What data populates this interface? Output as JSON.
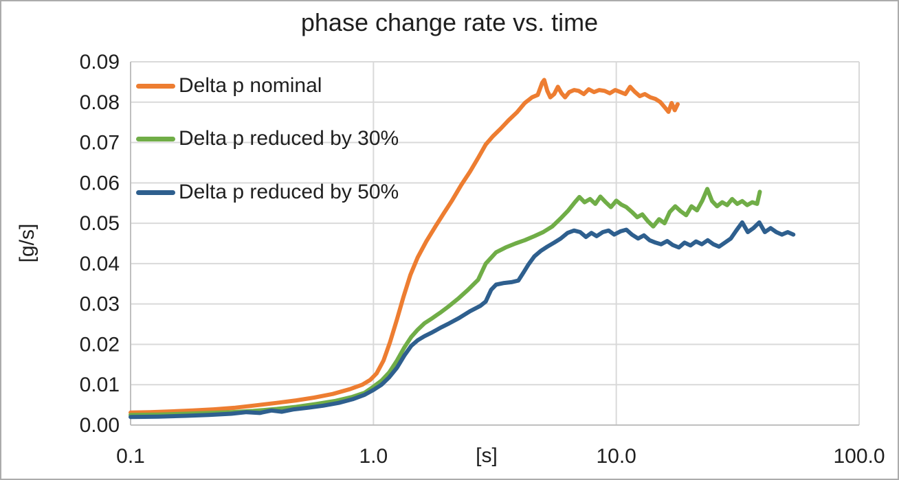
{
  "chart_data": {
    "type": "line",
    "title": "phase change rate vs. time",
    "xlabel": "[s]",
    "ylabel": "[g/s]",
    "x_scale": "log",
    "xlim": [
      0.1,
      100
    ],
    "ylim": [
      0,
      0.09
    ],
    "x_ticks": [
      0.1,
      1,
      10,
      100
    ],
    "x_tick_labels": [
      "0.1",
      "1.0",
      "10.0",
      "100.0"
    ],
    "y_tick_step": 0.01,
    "y_tick_labels": [
      "0.00",
      "0.01",
      "0.02",
      "0.03",
      "0.04",
      "0.05",
      "0.06",
      "0.07",
      "0.08",
      "0.09"
    ],
    "grid": true,
    "legend_position": "inside-top-left",
    "series": [
      {
        "name": "Delta p nominal",
        "color": "#ED7D31",
        "points": [
          [
            0.1,
            0.0031
          ],
          [
            0.12,
            0.0032
          ],
          [
            0.15,
            0.0034
          ],
          [
            0.18,
            0.0036
          ],
          [
            0.22,
            0.0039
          ],
          [
            0.27,
            0.0043
          ],
          [
            0.33,
            0.0049
          ],
          [
            0.4,
            0.0055
          ],
          [
            0.48,
            0.0061
          ],
          [
            0.57,
            0.0068
          ],
          [
            0.68,
            0.0077
          ],
          [
            0.8,
            0.0089
          ],
          [
            0.9,
            0.01
          ],
          [
            0.97,
            0.0112
          ],
          [
            1.03,
            0.0128
          ],
          [
            1.1,
            0.016
          ],
          [
            1.17,
            0.0205
          ],
          [
            1.25,
            0.0262
          ],
          [
            1.33,
            0.0318
          ],
          [
            1.42,
            0.0372
          ],
          [
            1.52,
            0.0415
          ],
          [
            1.65,
            0.0455
          ],
          [
            1.8,
            0.0492
          ],
          [
            1.95,
            0.0525
          ],
          [
            2.1,
            0.0555
          ],
          [
            2.3,
            0.0595
          ],
          [
            2.5,
            0.0628
          ],
          [
            2.7,
            0.0662
          ],
          [
            2.9,
            0.0695
          ],
          [
            3.1,
            0.0715
          ],
          [
            3.35,
            0.0735
          ],
          [
            3.6,
            0.0755
          ],
          [
            3.9,
            0.0775
          ],
          [
            4.2,
            0.0798
          ],
          [
            4.5,
            0.0812
          ],
          [
            4.75,
            0.0818
          ],
          [
            4.95,
            0.0848
          ],
          [
            5.05,
            0.0855
          ],
          [
            5.2,
            0.0828
          ],
          [
            5.35,
            0.0812
          ],
          [
            5.55,
            0.082
          ],
          [
            5.75,
            0.0838
          ],
          [
            5.95,
            0.0822
          ],
          [
            6.15,
            0.0812
          ],
          [
            6.4,
            0.0825
          ],
          [
            6.7,
            0.083
          ],
          [
            7.0,
            0.0828
          ],
          [
            7.35,
            0.082
          ],
          [
            7.7,
            0.0832
          ],
          [
            8.1,
            0.0825
          ],
          [
            8.5,
            0.083
          ],
          [
            8.95,
            0.0828
          ],
          [
            9.4,
            0.0822
          ],
          [
            9.9,
            0.083
          ],
          [
            10.4,
            0.0825
          ],
          [
            10.9,
            0.082
          ],
          [
            11.4,
            0.0838
          ],
          [
            11.9,
            0.0826
          ],
          [
            12.5,
            0.0815
          ],
          [
            13.1,
            0.082
          ],
          [
            13.8,
            0.0812
          ],
          [
            14.5,
            0.0808
          ],
          [
            15.2,
            0.08
          ],
          [
            15.9,
            0.0786
          ],
          [
            16.4,
            0.0776
          ],
          [
            16.9,
            0.0798
          ],
          [
            17.4,
            0.078
          ],
          [
            17.9,
            0.0795
          ]
        ]
      },
      {
        "name": "Delta p reduced by 30%",
        "color": "#70AD47",
        "points": [
          [
            0.1,
            0.0025
          ],
          [
            0.13,
            0.0026
          ],
          [
            0.17,
            0.0028
          ],
          [
            0.21,
            0.003
          ],
          [
            0.26,
            0.0032
          ],
          [
            0.32,
            0.0035
          ],
          [
            0.4,
            0.004
          ],
          [
            0.48,
            0.0045
          ],
          [
            0.58,
            0.0052
          ],
          [
            0.7,
            0.006
          ],
          [
            0.82,
            0.007
          ],
          [
            0.92,
            0.008
          ],
          [
            1.0,
            0.0095
          ],
          [
            1.08,
            0.011
          ],
          [
            1.16,
            0.013
          ],
          [
            1.25,
            0.016
          ],
          [
            1.34,
            0.0192
          ],
          [
            1.43,
            0.0218
          ],
          [
            1.52,
            0.0236
          ],
          [
            1.62,
            0.0252
          ],
          [
            1.75,
            0.0265
          ],
          [
            1.9,
            0.028
          ],
          [
            2.05,
            0.0295
          ],
          [
            2.25,
            0.0315
          ],
          [
            2.45,
            0.0335
          ],
          [
            2.7,
            0.036
          ],
          [
            2.9,
            0.04
          ],
          [
            3.2,
            0.0428
          ],
          [
            3.5,
            0.044
          ],
          [
            3.85,
            0.045
          ],
          [
            4.2,
            0.0458
          ],
          [
            4.6,
            0.0468
          ],
          [
            5.0,
            0.0478
          ],
          [
            5.45,
            0.0492
          ],
          [
            5.9,
            0.0512
          ],
          [
            6.35,
            0.0532
          ],
          [
            6.75,
            0.0552
          ],
          [
            7.05,
            0.0565
          ],
          [
            7.4,
            0.0552
          ],
          [
            7.8,
            0.056
          ],
          [
            8.2,
            0.0548
          ],
          [
            8.6,
            0.0566
          ],
          [
            9.05,
            0.0552
          ],
          [
            9.5,
            0.054
          ],
          [
            10.0,
            0.0556
          ],
          [
            10.5,
            0.0546
          ],
          [
            11.0,
            0.054
          ],
          [
            11.6,
            0.0528
          ],
          [
            12.2,
            0.0515
          ],
          [
            12.8,
            0.0522
          ],
          [
            13.5,
            0.0505
          ],
          [
            14.2,
            0.0492
          ],
          [
            15.0,
            0.051
          ],
          [
            15.8,
            0.05
          ],
          [
            16.6,
            0.0528
          ],
          [
            17.5,
            0.0542
          ],
          [
            18.4,
            0.053
          ],
          [
            19.4,
            0.052
          ],
          [
            20.4,
            0.0542
          ],
          [
            21.5,
            0.0532
          ],
          [
            22.6,
            0.0556
          ],
          [
            23.7,
            0.0585
          ],
          [
            24.8,
            0.0555
          ],
          [
            26.0,
            0.0542
          ],
          [
            27.3,
            0.0552
          ],
          [
            28.6,
            0.0545
          ],
          [
            30.0,
            0.056
          ],
          [
            31.5,
            0.0548
          ],
          [
            33.0,
            0.0555
          ],
          [
            34.6,
            0.0545
          ],
          [
            36.3,
            0.0552
          ],
          [
            38.0,
            0.0548
          ],
          [
            39.0,
            0.0578
          ]
        ]
      },
      {
        "name": "Delta p reduced by 50%",
        "color": "#2E5F8E",
        "points": [
          [
            0.1,
            0.002
          ],
          [
            0.13,
            0.0021
          ],
          [
            0.17,
            0.0023
          ],
          [
            0.21,
            0.0025
          ],
          [
            0.26,
            0.0028
          ],
          [
            0.3,
            0.0032
          ],
          [
            0.34,
            0.003
          ],
          [
            0.38,
            0.0036
          ],
          [
            0.42,
            0.0033
          ],
          [
            0.47,
            0.0039
          ],
          [
            0.54,
            0.0043
          ],
          [
            0.62,
            0.0048
          ],
          [
            0.72,
            0.0055
          ],
          [
            0.82,
            0.0064
          ],
          [
            0.92,
            0.0075
          ],
          [
            1.0,
            0.0087
          ],
          [
            1.08,
            0.01
          ],
          [
            1.16,
            0.0118
          ],
          [
            1.25,
            0.0142
          ],
          [
            1.34,
            0.0172
          ],
          [
            1.43,
            0.0196
          ],
          [
            1.52,
            0.021
          ],
          [
            1.62,
            0.022
          ],
          [
            1.75,
            0.023
          ],
          [
            1.9,
            0.0242
          ],
          [
            2.05,
            0.0252
          ],
          [
            2.25,
            0.0265
          ],
          [
            2.5,
            0.0282
          ],
          [
            2.75,
            0.0295
          ],
          [
            2.9,
            0.0306
          ],
          [
            3.05,
            0.0335
          ],
          [
            3.2,
            0.0348
          ],
          [
            3.45,
            0.0352
          ],
          [
            3.7,
            0.0354
          ],
          [
            3.95,
            0.0358
          ],
          [
            4.15,
            0.0378
          ],
          [
            4.35,
            0.0398
          ],
          [
            4.6,
            0.0418
          ],
          [
            4.9,
            0.0432
          ],
          [
            5.2,
            0.0442
          ],
          [
            5.55,
            0.0452
          ],
          [
            5.9,
            0.0462
          ],
          [
            6.3,
            0.0476
          ],
          [
            6.7,
            0.0482
          ],
          [
            7.1,
            0.0478
          ],
          [
            7.5,
            0.0466
          ],
          [
            7.9,
            0.0476
          ],
          [
            8.3,
            0.0468
          ],
          [
            8.8,
            0.0478
          ],
          [
            9.3,
            0.0482
          ],
          [
            9.8,
            0.0472
          ],
          [
            10.4,
            0.048
          ],
          [
            11.0,
            0.0484
          ],
          [
            11.6,
            0.0472
          ],
          [
            12.3,
            0.0462
          ],
          [
            13.0,
            0.047
          ],
          [
            13.7,
            0.0458
          ],
          [
            14.5,
            0.0452
          ],
          [
            15.3,
            0.0448
          ],
          [
            16.2,
            0.0456
          ],
          [
            17.1,
            0.0446
          ],
          [
            18.1,
            0.044
          ],
          [
            19.1,
            0.0452
          ],
          [
            20.2,
            0.0445
          ],
          [
            21.3,
            0.0455
          ],
          [
            22.5,
            0.0448
          ],
          [
            23.8,
            0.0458
          ],
          [
            25.1,
            0.0448
          ],
          [
            26.5,
            0.0442
          ],
          [
            28.0,
            0.0452
          ],
          [
            29.6,
            0.0462
          ],
          [
            31.2,
            0.0482
          ],
          [
            33.0,
            0.0502
          ],
          [
            34.8,
            0.0478
          ],
          [
            36.7,
            0.0488
          ],
          [
            38.8,
            0.0502
          ],
          [
            40.9,
            0.0478
          ],
          [
            43.2,
            0.0488
          ],
          [
            45.6,
            0.0478
          ],
          [
            48.1,
            0.0472
          ],
          [
            50.8,
            0.0478
          ],
          [
            53.6,
            0.0472
          ]
        ]
      }
    ]
  },
  "style": {
    "grid_color": "#D9D9D9",
    "axis_color": "#BFBFBF",
    "text_color": "#1f1f1f",
    "background": "#FFFFFF",
    "border_color": "#ABABAB"
  }
}
